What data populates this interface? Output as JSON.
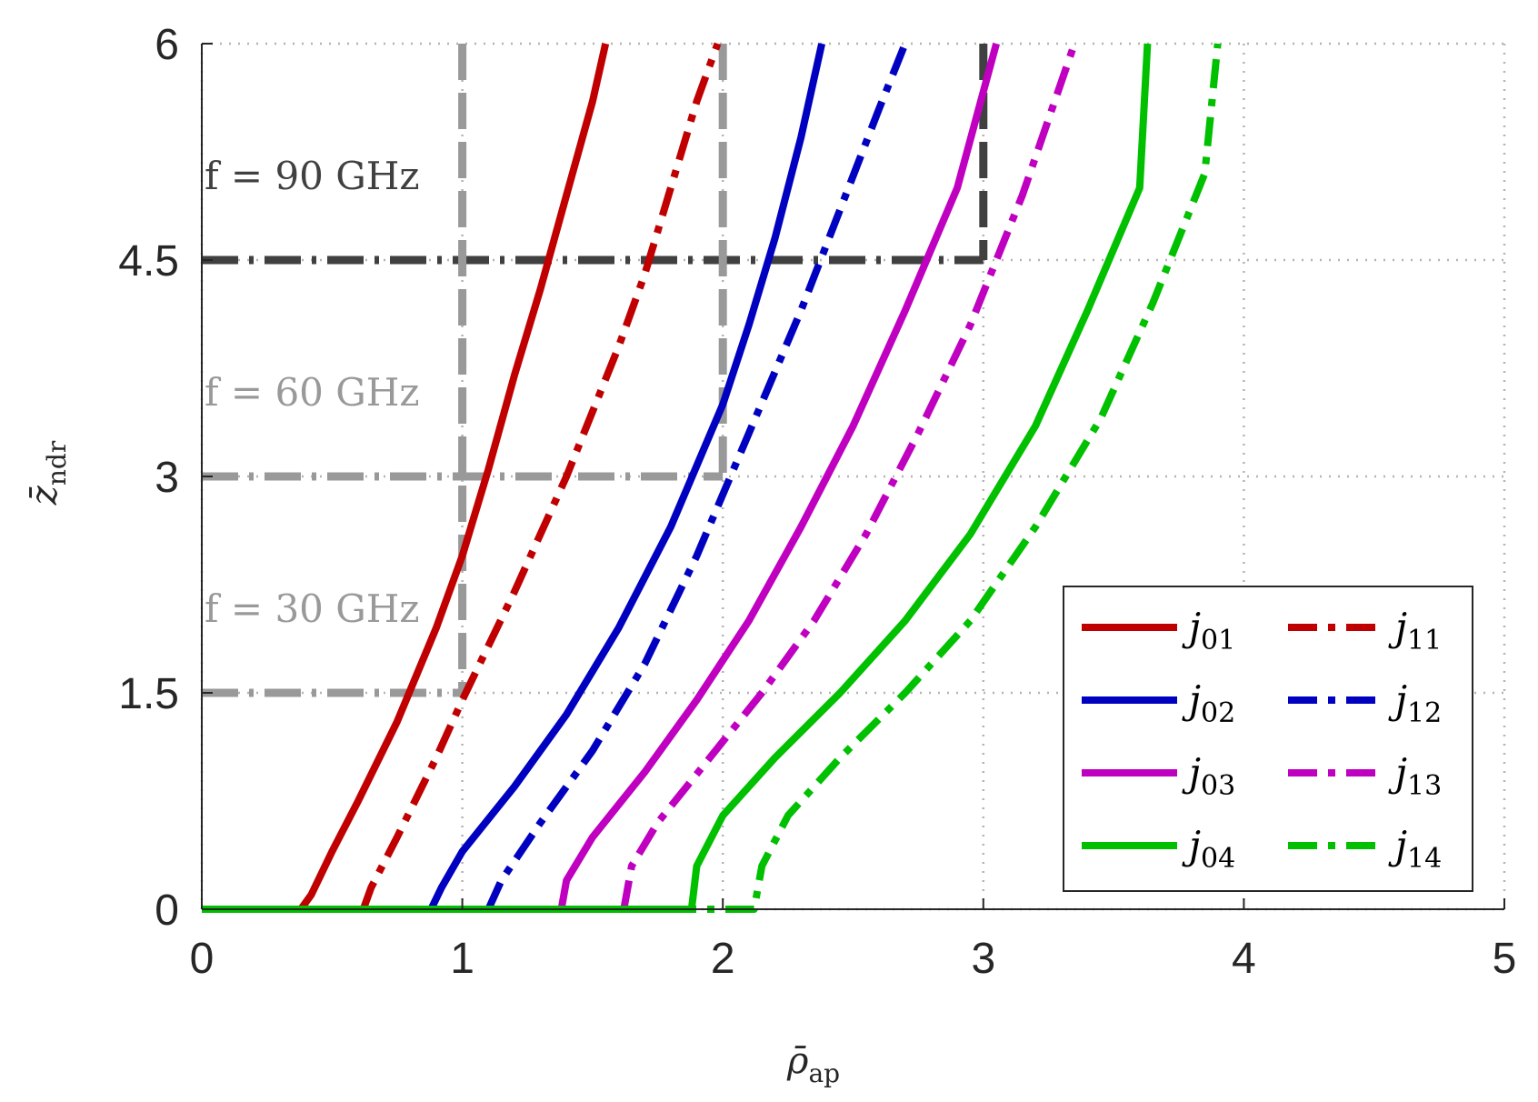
{
  "chart_data": {
    "type": "line",
    "xlabel": "ρ̄",
    "xlabel_sub": "ap",
    "ylabel": "z̄",
    "ylabel_sub": "ndr",
    "xlim": [
      0,
      5
    ],
    "ylim": [
      0,
      6
    ],
    "xticks": [
      0,
      1,
      2,
      3,
      4,
      5
    ],
    "xtick_labels": [
      "0",
      "1",
      "2",
      "3",
      "4",
      "5"
    ],
    "yticks": [
      0,
      1.5,
      3,
      4.5,
      6
    ],
    "ytick_labels": [
      "0",
      "1.5",
      "3",
      "4.5",
      "6"
    ],
    "grid": true,
    "legend_position": "bottom-right",
    "series": [
      {
        "name": "j01",
        "sym": "j",
        "sub": "01",
        "style": "solid",
        "color": "#c00000",
        "points": [
          [
            0,
            0
          ],
          [
            0.38,
            0
          ],
          [
            0.42,
            0.1
          ],
          [
            0.5,
            0.4
          ],
          [
            0.6,
            0.75
          ],
          [
            0.75,
            1.3
          ],
          [
            0.9,
            1.95
          ],
          [
            1.0,
            2.45
          ],
          [
            1.1,
            3.05
          ],
          [
            1.2,
            3.7
          ],
          [
            1.3,
            4.3
          ],
          [
            1.4,
            4.95
          ],
          [
            1.5,
            5.6
          ],
          [
            1.55,
            6
          ]
        ]
      },
      {
        "name": "j11",
        "sym": "j",
        "sub": "11",
        "style": "dashdot",
        "color": "#c00000",
        "points": [
          [
            0.62,
            0
          ],
          [
            0.65,
            0.15
          ],
          [
            0.75,
            0.5
          ],
          [
            0.9,
            1.05
          ],
          [
            1.0,
            1.45
          ],
          [
            1.2,
            2.2
          ],
          [
            1.4,
            3.0
          ],
          [
            1.6,
            3.9
          ],
          [
            1.7,
            4.4
          ],
          [
            1.8,
            5.0
          ],
          [
            1.9,
            5.6
          ],
          [
            1.98,
            6
          ]
        ]
      },
      {
        "name": "j02",
        "sym": "j",
        "sub": "02",
        "style": "solid",
        "color": "#0000c0",
        "points": [
          [
            0,
            0
          ],
          [
            0.88,
            0
          ],
          [
            0.92,
            0.15
          ],
          [
            1.0,
            0.4
          ],
          [
            1.2,
            0.85
          ],
          [
            1.4,
            1.35
          ],
          [
            1.6,
            1.95
          ],
          [
            1.8,
            2.65
          ],
          [
            2.0,
            3.5
          ],
          [
            2.1,
            4.05
          ],
          [
            2.2,
            4.65
          ],
          [
            2.3,
            5.35
          ],
          [
            2.38,
            6
          ]
        ]
      },
      {
        "name": "j12",
        "sym": "j",
        "sub": "12",
        "style": "dashdot",
        "color": "#0000c0",
        "points": [
          [
            1.1,
            0
          ],
          [
            1.15,
            0.2
          ],
          [
            1.3,
            0.6
          ],
          [
            1.5,
            1.1
          ],
          [
            1.7,
            1.7
          ],
          [
            1.9,
            2.45
          ],
          [
            2.1,
            3.3
          ],
          [
            2.3,
            4.15
          ],
          [
            2.45,
            4.85
          ],
          [
            2.6,
            5.55
          ],
          [
            2.7,
            6
          ]
        ]
      },
      {
        "name": "j03",
        "sym": "j",
        "sub": "03",
        "style": "solid",
        "color": "#c000c0",
        "points": [
          [
            0,
            0
          ],
          [
            1.38,
            0
          ],
          [
            1.4,
            0.2
          ],
          [
            1.5,
            0.5
          ],
          [
            1.7,
            0.95
          ],
          [
            1.9,
            1.45
          ],
          [
            2.1,
            2.0
          ],
          [
            2.3,
            2.65
          ],
          [
            2.5,
            3.35
          ],
          [
            2.7,
            4.15
          ],
          [
            2.9,
            5.0
          ],
          [
            3.05,
            6
          ]
        ]
      },
      {
        "name": "j13",
        "sym": "j",
        "sub": "13",
        "style": "dashdot",
        "color": "#c000c0",
        "points": [
          [
            1.62,
            0
          ],
          [
            1.65,
            0.3
          ],
          [
            1.75,
            0.6
          ],
          [
            1.95,
            1.05
          ],
          [
            2.15,
            1.5
          ],
          [
            2.35,
            2.0
          ],
          [
            2.55,
            2.6
          ],
          [
            2.75,
            3.3
          ],
          [
            2.95,
            4.05
          ],
          [
            3.15,
            4.95
          ],
          [
            3.35,
            6
          ]
        ]
      },
      {
        "name": "j04",
        "sym": "j",
        "sub": "04",
        "style": "solid",
        "color": "#00c000",
        "points": [
          [
            0,
            0
          ],
          [
            1.88,
            0
          ],
          [
            1.9,
            0.3
          ],
          [
            2.0,
            0.65
          ],
          [
            2.2,
            1.05
          ],
          [
            2.45,
            1.5
          ],
          [
            2.7,
            2.0
          ],
          [
            2.95,
            2.6
          ],
          [
            3.2,
            3.35
          ],
          [
            3.4,
            4.15
          ],
          [
            3.6,
            5.0
          ],
          [
            3.63,
            6
          ]
        ]
      },
      {
        "name": "j14",
        "sym": "j",
        "sub": "14",
        "style": "dashdot",
        "color": "#00c000",
        "points": [
          [
            0,
            0
          ],
          [
            2.12,
            0
          ],
          [
            2.15,
            0.3
          ],
          [
            2.25,
            0.65
          ],
          [
            2.45,
            1.05
          ],
          [
            2.7,
            1.5
          ],
          [
            2.95,
            2.0
          ],
          [
            3.2,
            2.65
          ],
          [
            3.45,
            3.4
          ],
          [
            3.65,
            4.2
          ],
          [
            3.85,
            5.1
          ],
          [
            3.9,
            6
          ]
        ]
      }
    ],
    "annotations": [
      {
        "label": "f = 90 GHz",
        "color": "#404040",
        "z": 4.5,
        "rho": 3.0
      },
      {
        "label": "f = 60 GHz",
        "color": "#999999",
        "z": 3.0,
        "rho": 2.0
      },
      {
        "label": "f = 30 GHz",
        "color": "#999999",
        "z": 1.5,
        "rho": 1.0
      }
    ]
  }
}
